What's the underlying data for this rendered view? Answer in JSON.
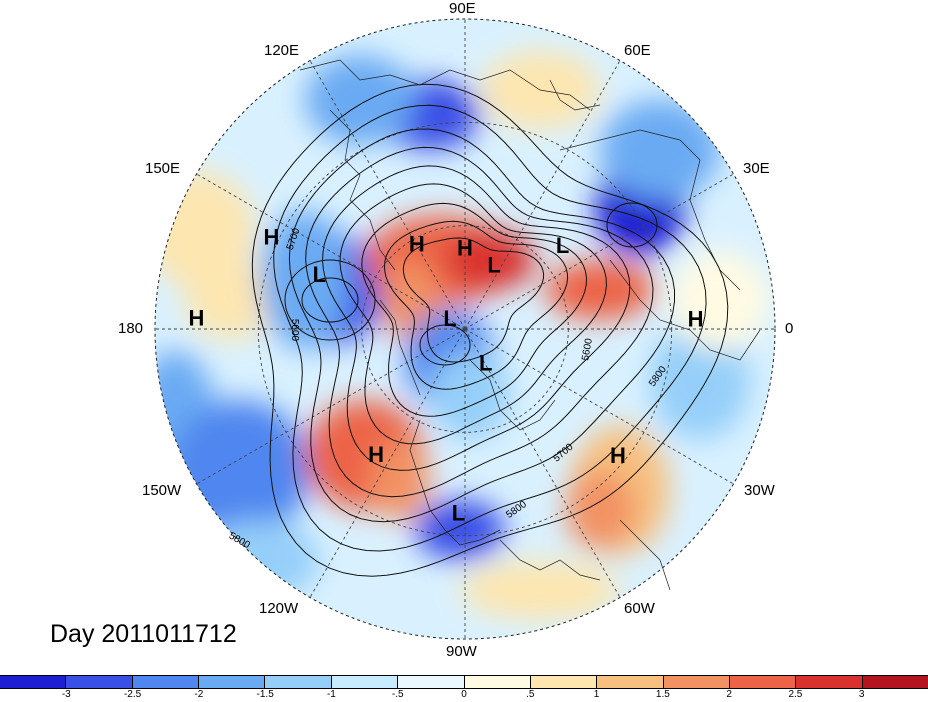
{
  "title": "Day 2011011712",
  "longitude_labels": {
    "lon_90e": "90E",
    "lon_60e": "60E",
    "lon_120e": "120E",
    "lon_30e": "30E",
    "lon_150e": "150E",
    "lon_0": "0",
    "lon_180": "180",
    "lon_30w": "30W",
    "lon_150w": "150W",
    "lon_60w": "60W",
    "lon_120w": "120W",
    "lon_90w": "90W"
  },
  "pressure_centers": [
    {
      "label": "H",
      "lon": 155,
      "lat": 28
    },
    {
      "label": "H",
      "lon": 178,
      "lat": 12
    },
    {
      "label": "L",
      "lon": 160,
      "lat": 45
    },
    {
      "label": "H",
      "lon": 120,
      "lat": 62
    },
    {
      "label": "H",
      "lon": 90,
      "lat": 67
    },
    {
      "label": "L",
      "lon": 65,
      "lat": 70
    },
    {
      "label": "L",
      "lon": 40,
      "lat": 53
    },
    {
      "label": "H",
      "lon": 2,
      "lat": 23
    },
    {
      "label": "L",
      "lon": 150,
      "lat": 85
    },
    {
      "label": "L",
      "lon": -60,
      "lat": 78
    },
    {
      "label": "H",
      "lon": -125,
      "lat": 45
    },
    {
      "label": "H",
      "lon": -40,
      "lat": 32
    },
    {
      "label": "L",
      "lon": -92,
      "lat": 36
    }
  ],
  "contour_labels": [
    "5700",
    "5600",
    "5600",
    "5800",
    "5700",
    "5800",
    "5800"
  ],
  "colorbar": {
    "colors": [
      "#1e1ed2",
      "#3a4fe6",
      "#4f86ef",
      "#6aaaf3",
      "#95cff9",
      "#c8ecff",
      "#eaf8ff",
      "#fffbe3",
      "#fde6b0",
      "#f7c07f",
      "#f29263",
      "#ec6347",
      "#d9312e",
      "#b31420"
    ],
    "tick_labels": [
      "-3",
      "-2.5",
      "-2",
      "-1.5",
      "-1",
      "-.5",
      "0",
      ".5",
      "1",
      "1.5",
      "2",
      "2.5",
      "3"
    ]
  }
}
